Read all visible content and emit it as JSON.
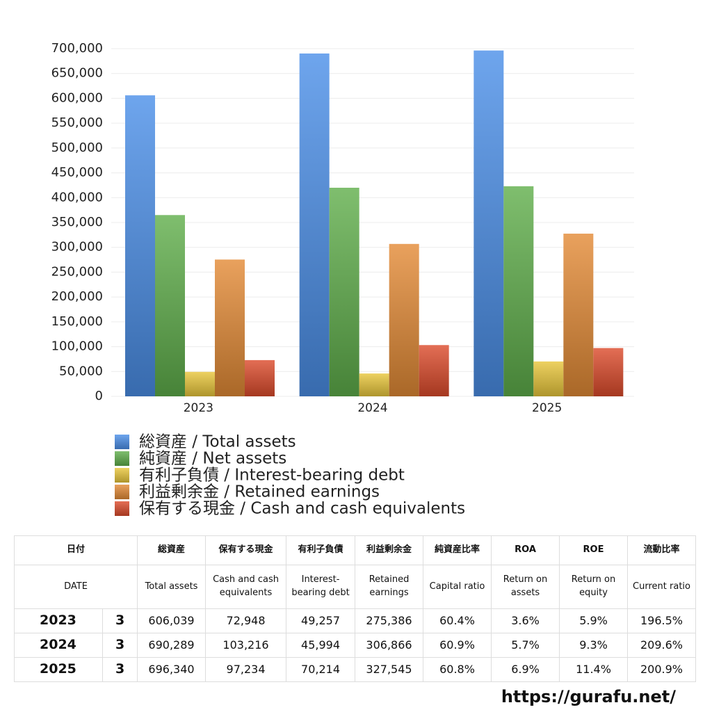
{
  "chart_data": {
    "type": "bar",
    "categories": [
      "2023",
      "2024",
      "2025"
    ],
    "series": [
      {
        "name": "総資産 / Total assets",
        "color": "#4a8ee8",
        "values": [
          606039,
          690289,
          696340
        ]
      },
      {
        "name": "純資産 / Net assets",
        "color": "#5fae4a",
        "values": [
          365000,
          420000,
          423000
        ]
      },
      {
        "name": "有利子負債 / Interest-bearing debt",
        "color": "#e8c63a",
        "values": [
          49257,
          45994,
          70214
        ]
      },
      {
        "name": "利益剰余金 / Retained earnings",
        "color": "#e38a35",
        "values": [
          275386,
          306866,
          327545
        ]
      },
      {
        "name": "保有する現金 /  Cash and cash equivalents",
        "color": "#dc4a2a",
        "values": [
          72948,
          103216,
          97234
        ]
      }
    ],
    "ylim": [
      0,
      700000
    ],
    "yticks": [
      0,
      {
        "value": 50000,
        "label": "50,000"
      },
      {
        "value": 100000,
        "label": "100,000"
      },
      {
        "value": 150000,
        "label": "150,000"
      },
      {
        "value": 200000,
        "label": "200,000"
      },
      {
        "value": 250000,
        "label": "250,000"
      },
      {
        "value": 300000,
        "label": "300,000"
      },
      {
        "value": 350000,
        "label": "350,000"
      },
      {
        "value": 400000,
        "label": "400,000"
      },
      {
        "value": 450000,
        "label": "450,000"
      },
      {
        "value": 500000,
        "label": "500,000"
      },
      {
        "value": 550000,
        "label": "550,000"
      },
      {
        "value": 600000,
        "label": "600,000"
      },
      {
        "value": 650000,
        "label": "650,000"
      },
      {
        "value": 700000,
        "label": "700,000"
      }
    ],
    "grid": true
  },
  "table": {
    "header_ja": [
      "日付",
      "総資産",
      "保有する現金",
      "有利子負債",
      "利益剰余金",
      "純資産比率",
      "ROA",
      "ROE",
      "流動比率"
    ],
    "header_en": [
      "DATE",
      "Total assets",
      "Cash and cash equivalents",
      "Interest-bearing debt",
      "Retained earnings",
      "Capital ratio",
      "Return on assets",
      "Return on equity",
      "Current ratio"
    ],
    "rows": [
      [
        "2023",
        "3",
        "606,039",
        "72,948",
        "49,257",
        "275,386",
        "60.4%",
        "3.6%",
        "5.9%",
        "196.5%"
      ],
      [
        "2024",
        "3",
        "690,289",
        "103,216",
        "45,994",
        "306,866",
        "60.9%",
        "5.7%",
        "9.3%",
        "209.6%"
      ],
      [
        "2025",
        "3",
        "696,340",
        "97,234",
        "70,214",
        "327,545",
        "60.8%",
        "6.9%",
        "11.4%",
        "200.9%"
      ]
    ]
  },
  "footer": {
    "url": "https://gurafu.net/"
  }
}
